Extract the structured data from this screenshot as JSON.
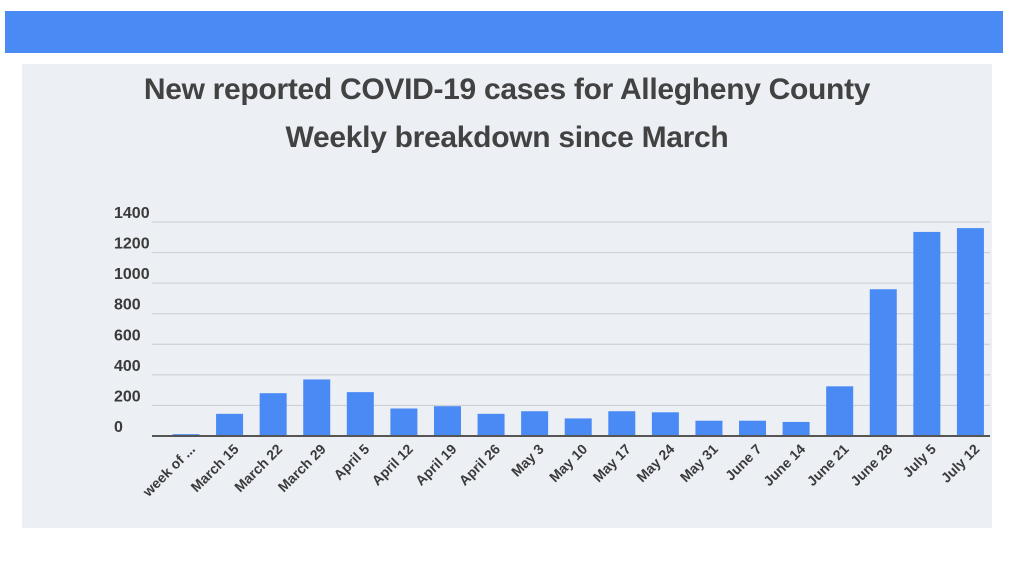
{
  "colors": {
    "banner": "#4a8af4",
    "panel": "#eceff4",
    "bar": "#4a8af4",
    "text": "#424242",
    "grid": "#c9ccd1",
    "baseline": "#555555"
  },
  "chart_data": {
    "type": "bar",
    "title": "New reported COVID-19 cases for Allegheny County",
    "subtitle": "Weekly breakdown since March",
    "xlabel": "",
    "ylabel": "",
    "ylim": [
      0,
      1400
    ],
    "yticks": [
      0,
      200,
      400,
      600,
      800,
      1000,
      1200,
      1400
    ],
    "grid": true,
    "legend": "none",
    "categories": [
      "week of ...",
      "March 15",
      "March 22",
      "March 29",
      "April 5",
      "April 12",
      "April 19",
      "April 26",
      "May 3",
      "May 10",
      "May 17",
      "May 24",
      "May 31",
      "June 7",
      "June 14",
      "June 21",
      "June 28",
      "July 5",
      "July 12"
    ],
    "values": [
      12,
      145,
      280,
      370,
      287,
      180,
      195,
      145,
      162,
      115,
      162,
      155,
      100,
      100,
      92,
      325,
      960,
      1335,
      1360
    ]
  }
}
